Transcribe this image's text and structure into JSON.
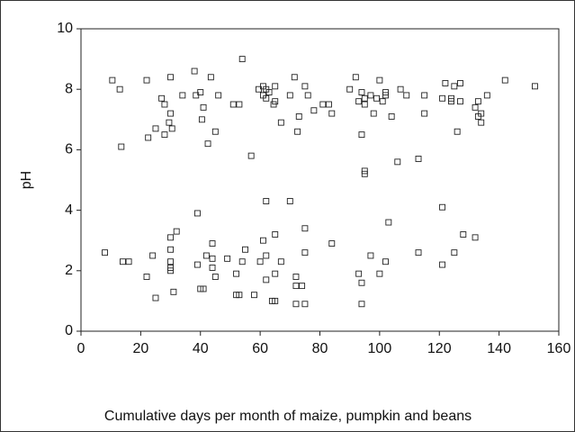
{
  "chart_data": {
    "type": "scatter",
    "x_label": "Cumulative days per month of maize, pumpkin and beans",
    "y_label": "pH",
    "xlim": [
      0,
      160
    ],
    "xticks": [
      0,
      20,
      40,
      60,
      80,
      100,
      120,
      140,
      160
    ],
    "ylim": [
      0,
      10
    ],
    "yticks": [
      0,
      2,
      4,
      6,
      8,
      10
    ],
    "color": "#222222",
    "x": [
      10.5,
      13,
      13.5,
      22,
      22.5,
      25,
      27,
      28,
      28,
      29.5,
      30,
      30,
      30.5,
      34,
      38,
      38.5,
      40,
      40.5,
      41,
      42.5,
      43.5,
      45,
      46,
      51,
      53,
      54,
      57,
      59.5,
      61,
      61,
      62,
      62,
      63,
      64.5,
      65,
      65,
      67,
      70,
      71.5,
      72.5,
      73,
      75,
      76,
      78,
      81,
      83,
      84,
      90,
      92,
      93,
      94,
      94,
      95,
      95,
      95,
      95,
      97,
      98,
      99,
      100,
      101,
      102,
      102,
      104,
      106,
      107,
      109,
      113,
      115,
      115,
      121,
      122,
      124,
      124,
      125,
      126,
      127,
      127,
      132,
      133,
      133,
      134,
      134,
      136,
      142,
      152,
      8,
      14,
      16,
      22,
      24,
      25,
      30,
      30,
      30,
      30,
      30,
      31,
      32,
      39,
      39,
      40,
      41,
      42,
      44,
      44,
      44,
      45,
      49,
      52,
      52,
      53,
      54,
      55,
      58,
      60,
      61,
      62,
      62,
      62,
      64,
      65,
      65,
      65,
      67,
      70,
      72,
      72,
      72,
      74,
      75,
      75,
      75,
      84,
      93,
      94,
      94,
      97,
      100,
      102,
      103,
      113,
      121,
      121,
      125,
      128,
      132
    ],
    "values": [
      8.3,
      8.0,
      6.1,
      8.3,
      6.4,
      6.7,
      7.7,
      7.5,
      6.5,
      6.9,
      8.4,
      7.2,
      6.7,
      7.8,
      8.6,
      7.8,
      7.9,
      7.0,
      7.4,
      6.2,
      8.4,
      6.6,
      7.8,
      7.5,
      7.5,
      9.0,
      5.8,
      8.0,
      7.8,
      8.1,
      7.7,
      8.0,
      7.9,
      7.5,
      8.1,
      7.6,
      6.9,
      7.8,
      8.4,
      6.6,
      7.1,
      8.1,
      7.8,
      7.3,
      7.5,
      7.5,
      7.2,
      8.0,
      8.4,
      7.6,
      6.5,
      7.9,
      7.7,
      7.5,
      5.3,
      5.2,
      7.8,
      7.2,
      7.7,
      8.3,
      7.6,
      7.8,
      7.9,
      7.1,
      5.6,
      8.0,
      7.8,
      5.7,
      7.8,
      7.2,
      7.7,
      8.2,
      7.6,
      7.7,
      8.1,
      6.6,
      8.2,
      7.6,
      7.4,
      7.6,
      7.1,
      7.2,
      6.9,
      7.8,
      8.3,
      8.1,
      2.6,
      2.3,
      2.3,
      1.8,
      2.5,
      1.1,
      3.1,
      2.7,
      2.3,
      2.1,
      2.0,
      1.3,
      3.3,
      3.9,
      2.2,
      1.4,
      1.4,
      2.5,
      2.9,
      2.4,
      2.1,
      1.8,
      2.4,
      1.9,
      1.2,
      1.2,
      2.3,
      2.7,
      1.2,
      2.3,
      3.0,
      4.3,
      2.5,
      1.7,
      1.0,
      1.0,
      3.2,
      1.9,
      2.3,
      4.3,
      1.8,
      1.5,
      0.9,
      1.5,
      3.4,
      2.6,
      0.9,
      2.9,
      1.9,
      1.6,
      0.9,
      2.5,
      1.9,
      2.3,
      3.6,
      2.6,
      4.1,
      2.2,
      2.6,
      3.2,
      3.1
    ]
  }
}
